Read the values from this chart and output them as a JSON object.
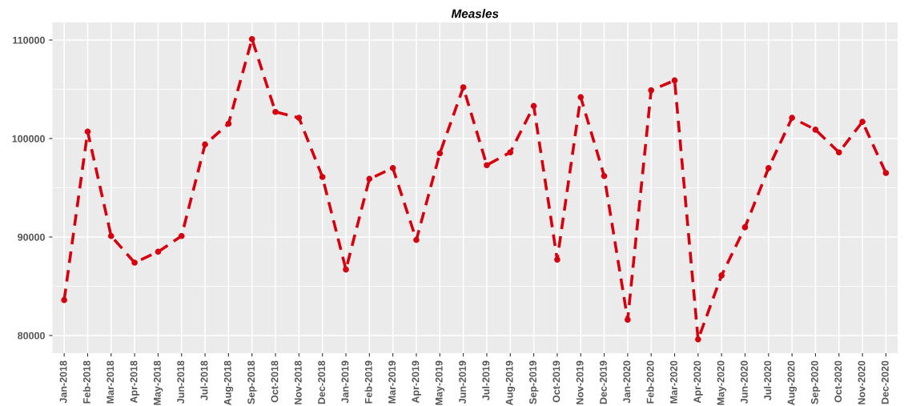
{
  "chart_data": {
    "type": "line",
    "title": "Measles",
    "categories": [
      "Jan-2018",
      "Feb-2018",
      "Mar-2018",
      "Apr-2018",
      "May-2018",
      "Jun-2018",
      "Jul-2018",
      "Aug-2018",
      "Sep-2018",
      "Oct-2018",
      "Nov-2018",
      "Dec-2018",
      "Jan-2019",
      "Feb-2019",
      "Mar-2019",
      "Apr-2019",
      "May-2019",
      "Jun-2019",
      "Jul-2019",
      "Aug-2019",
      "Sep-2019",
      "Oct-2019",
      "Nov-2019",
      "Dec-2019",
      "Jan-2020",
      "Feb-2020",
      "Mar-2020",
      "Apr-2020",
      "May-2020",
      "Jun-2020",
      "Jul-2020",
      "Aug-2020",
      "Sep-2020",
      "Oct-2020",
      "Nov-2020",
      "Dec-2020"
    ],
    "series": [
      {
        "color": "#d7000f",
        "values": [
          83600,
          100700,
          90100,
          87400,
          88500,
          90100,
          99400,
          101500,
          110100,
          102700,
          102100,
          96100,
          86700,
          95900,
          97000,
          89700,
          98500,
          105200,
          97300,
          98600,
          103300,
          87700,
          104200,
          96200,
          81600,
          104900,
          105900,
          79600,
          86100,
          91000,
          97000,
          102100,
          100900,
          98600,
          101700,
          96500
        ]
      }
    ],
    "ylim": [
      78200,
      111800
    ],
    "yticks": [
      80000,
      90000,
      100000,
      110000
    ],
    "grid": true,
    "marker": "circle",
    "line_style": "dashed"
  }
}
